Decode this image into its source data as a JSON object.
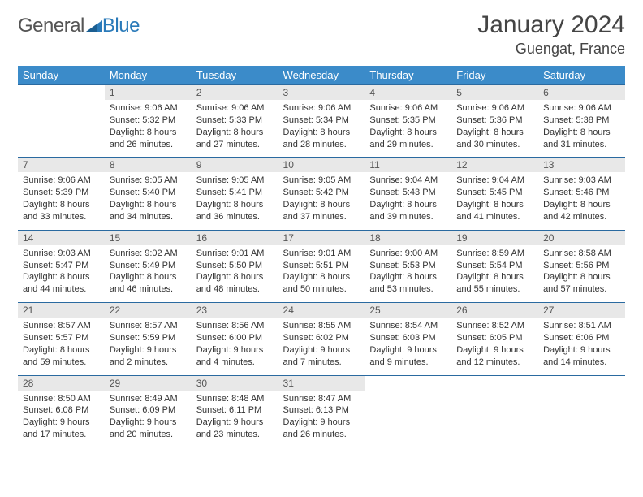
{
  "brand": {
    "general": "General",
    "blue": "Blue"
  },
  "title": "January 2024",
  "location": "Guengat, France",
  "colors": {
    "headerBg": "#3b8bc9",
    "headerText": "#ffffff",
    "dayNumBg": "#e8e8e8",
    "rowBorder": "#2a6aa0",
    "text": "#333333"
  },
  "weekdays": [
    "Sunday",
    "Monday",
    "Tuesday",
    "Wednesday",
    "Thursday",
    "Friday",
    "Saturday"
  ],
  "fonts": {
    "title_pt": 30,
    "location_pt": 18,
    "weekday_pt": 13,
    "daynum_pt": 12,
    "body_pt": 11
  },
  "firstWeekdayIndex": 1,
  "days": [
    {
      "n": 1,
      "sunrise": "9:06 AM",
      "sunset": "5:32 PM",
      "daylight": "8 hours and 26 minutes."
    },
    {
      "n": 2,
      "sunrise": "9:06 AM",
      "sunset": "5:33 PM",
      "daylight": "8 hours and 27 minutes."
    },
    {
      "n": 3,
      "sunrise": "9:06 AM",
      "sunset": "5:34 PM",
      "daylight": "8 hours and 28 minutes."
    },
    {
      "n": 4,
      "sunrise": "9:06 AM",
      "sunset": "5:35 PM",
      "daylight": "8 hours and 29 minutes."
    },
    {
      "n": 5,
      "sunrise": "9:06 AM",
      "sunset": "5:36 PM",
      "daylight": "8 hours and 30 minutes."
    },
    {
      "n": 6,
      "sunrise": "9:06 AM",
      "sunset": "5:38 PM",
      "daylight": "8 hours and 31 minutes."
    },
    {
      "n": 7,
      "sunrise": "9:06 AM",
      "sunset": "5:39 PM",
      "daylight": "8 hours and 33 minutes."
    },
    {
      "n": 8,
      "sunrise": "9:05 AM",
      "sunset": "5:40 PM",
      "daylight": "8 hours and 34 minutes."
    },
    {
      "n": 9,
      "sunrise": "9:05 AM",
      "sunset": "5:41 PM",
      "daylight": "8 hours and 36 minutes."
    },
    {
      "n": 10,
      "sunrise": "9:05 AM",
      "sunset": "5:42 PM",
      "daylight": "8 hours and 37 minutes."
    },
    {
      "n": 11,
      "sunrise": "9:04 AM",
      "sunset": "5:43 PM",
      "daylight": "8 hours and 39 minutes."
    },
    {
      "n": 12,
      "sunrise": "9:04 AM",
      "sunset": "5:45 PM",
      "daylight": "8 hours and 41 minutes."
    },
    {
      "n": 13,
      "sunrise": "9:03 AM",
      "sunset": "5:46 PM",
      "daylight": "8 hours and 42 minutes."
    },
    {
      "n": 14,
      "sunrise": "9:03 AM",
      "sunset": "5:47 PM",
      "daylight": "8 hours and 44 minutes."
    },
    {
      "n": 15,
      "sunrise": "9:02 AM",
      "sunset": "5:49 PM",
      "daylight": "8 hours and 46 minutes."
    },
    {
      "n": 16,
      "sunrise": "9:01 AM",
      "sunset": "5:50 PM",
      "daylight": "8 hours and 48 minutes."
    },
    {
      "n": 17,
      "sunrise": "9:01 AM",
      "sunset": "5:51 PM",
      "daylight": "8 hours and 50 minutes."
    },
    {
      "n": 18,
      "sunrise": "9:00 AM",
      "sunset": "5:53 PM",
      "daylight": "8 hours and 53 minutes."
    },
    {
      "n": 19,
      "sunrise": "8:59 AM",
      "sunset": "5:54 PM",
      "daylight": "8 hours and 55 minutes."
    },
    {
      "n": 20,
      "sunrise": "8:58 AM",
      "sunset": "5:56 PM",
      "daylight": "8 hours and 57 minutes."
    },
    {
      "n": 21,
      "sunrise": "8:57 AM",
      "sunset": "5:57 PM",
      "daylight": "8 hours and 59 minutes."
    },
    {
      "n": 22,
      "sunrise": "8:57 AM",
      "sunset": "5:59 PM",
      "daylight": "9 hours and 2 minutes."
    },
    {
      "n": 23,
      "sunrise": "8:56 AM",
      "sunset": "6:00 PM",
      "daylight": "9 hours and 4 minutes."
    },
    {
      "n": 24,
      "sunrise": "8:55 AM",
      "sunset": "6:02 PM",
      "daylight": "9 hours and 7 minutes."
    },
    {
      "n": 25,
      "sunrise": "8:54 AM",
      "sunset": "6:03 PM",
      "daylight": "9 hours and 9 minutes."
    },
    {
      "n": 26,
      "sunrise": "8:52 AM",
      "sunset": "6:05 PM",
      "daylight": "9 hours and 12 minutes."
    },
    {
      "n": 27,
      "sunrise": "8:51 AM",
      "sunset": "6:06 PM",
      "daylight": "9 hours and 14 minutes."
    },
    {
      "n": 28,
      "sunrise": "8:50 AM",
      "sunset": "6:08 PM",
      "daylight": "9 hours and 17 minutes."
    },
    {
      "n": 29,
      "sunrise": "8:49 AM",
      "sunset": "6:09 PM",
      "daylight": "9 hours and 20 minutes."
    },
    {
      "n": 30,
      "sunrise": "8:48 AM",
      "sunset": "6:11 PM",
      "daylight": "9 hours and 23 minutes."
    },
    {
      "n": 31,
      "sunrise": "8:47 AM",
      "sunset": "6:13 PM",
      "daylight": "9 hours and 26 minutes."
    }
  ],
  "labels": {
    "sunrise": "Sunrise:",
    "sunset": "Sunset:",
    "daylight": "Daylight:"
  }
}
